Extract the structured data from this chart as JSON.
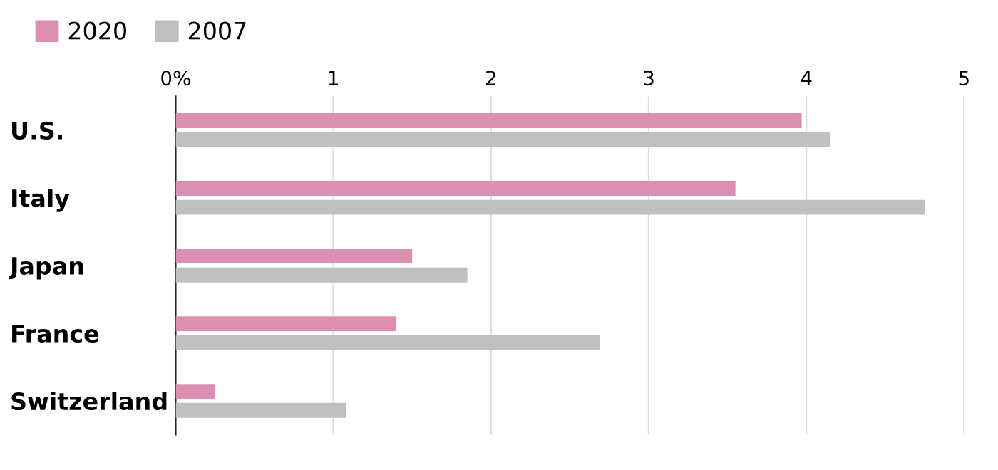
{
  "chart_data": {
    "type": "bar",
    "orientation": "horizontal",
    "categories": [
      "U.S.",
      "Italy",
      "Japan",
      "France",
      "Switzerland"
    ],
    "series": [
      {
        "name": "2020",
        "color": "#dc8fb0",
        "values": [
          3.97,
          3.55,
          1.5,
          1.4,
          0.25
        ]
      },
      {
        "name": "2007",
        "color": "#bfbfbf",
        "values": [
          4.15,
          4.75,
          1.85,
          2.69,
          1.08
        ]
      }
    ],
    "xlim": [
      0,
      5
    ],
    "xticks": [
      {
        "value": 0,
        "label": "0%"
      },
      1,
      2,
      3,
      4,
      5
    ],
    "grid": "x",
    "legend": "top left"
  }
}
